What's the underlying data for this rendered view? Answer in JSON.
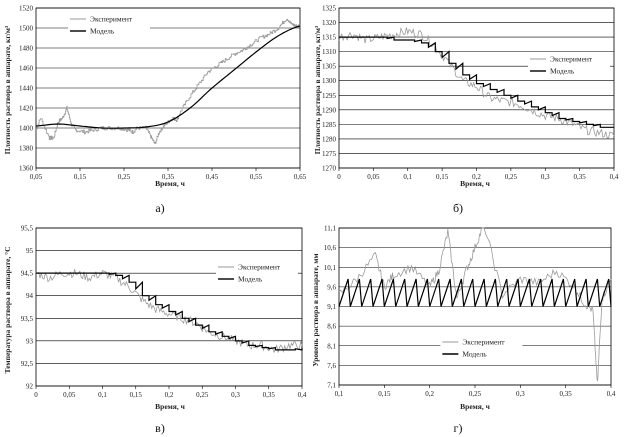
{
  "chart_data": [
    {
      "type": "line",
      "panel": "а)",
      "ylabel": "Плотность раствора в аппарате, кг/м³",
      "xlabel": "Время, ч",
      "xlim": [
        0.05,
        0.65
      ],
      "ylim": [
        1360,
        1520
      ],
      "xticks": [
        "0,05",
        "0,15",
        "0,25",
        "0,35",
        "0,45",
        "0,55",
        "0,65"
      ],
      "xtick_values": [
        0.05,
        0.15,
        0.25,
        0.35,
        0.45,
        0.55,
        0.65
      ],
      "yticks": [
        "1360",
        "1380",
        "1400",
        "1420",
        "1440",
        "1460",
        "1480",
        "1500",
        "1520"
      ],
      "ytick_values": [
        1360,
        1380,
        1400,
        1420,
        1440,
        1460,
        1480,
        1500,
        1520
      ],
      "legend_position": "top-left",
      "series": [
        {
          "name": "Эксперимент",
          "color": "#9a9a9a",
          "style": "step-noisy",
          "x": [
            0.05,
            0.06,
            0.08,
            0.09,
            0.1,
            0.11,
            0.12,
            0.13,
            0.14,
            0.16,
            0.18,
            0.2,
            0.22,
            0.24,
            0.26,
            0.27,
            0.28,
            0.3,
            0.31,
            0.32,
            0.33,
            0.34,
            0.35,
            0.36,
            0.37,
            0.38,
            0.4,
            0.42,
            0.44,
            0.46,
            0.48,
            0.5,
            0.52,
            0.54,
            0.56,
            0.58,
            0.6,
            0.62,
            0.63,
            0.64,
            0.65
          ],
          "y": [
            1398,
            1410,
            1390,
            1390,
            1406,
            1410,
            1420,
            1404,
            1398,
            1396,
            1398,
            1400,
            1400,
            1400,
            1398,
            1396,
            1400,
            1400,
            1392,
            1384,
            1396,
            1402,
            1406,
            1410,
            1408,
            1418,
            1432,
            1444,
            1456,
            1462,
            1468,
            1474,
            1478,
            1484,
            1490,
            1494,
            1500,
            1510,
            1504,
            1502,
            1502
          ]
        },
        {
          "name": "Модель",
          "color": "#000000",
          "style": "smooth",
          "x": [
            0.05,
            0.1,
            0.15,
            0.2,
            0.25,
            0.3,
            0.35,
            0.4,
            0.45,
            0.5,
            0.55,
            0.6,
            0.65
          ],
          "y": [
            1402,
            1404,
            1402,
            1400,
            1400,
            1401,
            1406,
            1420,
            1440,
            1458,
            1476,
            1492,
            1502
          ]
        }
      ]
    },
    {
      "type": "line",
      "panel": "б)",
      "ylabel": "Плотность раствора в аппарате, кг/м³",
      "xlabel": "Время, ч",
      "xlim": [
        0,
        0.4
      ],
      "ylim": [
        1270,
        1325
      ],
      "xticks": [
        "0",
        "0,05",
        "0,1",
        "0,15",
        "0,2",
        "0,25",
        "0,3",
        "0,35",
        "0,4"
      ],
      "xtick_values": [
        0,
        0.05,
        0.1,
        0.15,
        0.2,
        0.25,
        0.3,
        0.35,
        0.4
      ],
      "yticks": [
        "1270",
        "1275",
        "1280",
        "1285",
        "1290",
        "1295",
        "1300",
        "1305",
        "1310",
        "1315",
        "1320",
        "1325"
      ],
      "ytick_values": [
        1270,
        1275,
        1280,
        1285,
        1290,
        1295,
        1300,
        1305,
        1310,
        1315,
        1320,
        1325
      ],
      "legend_position": "right",
      "series": [
        {
          "name": "Эксперимент",
          "color": "#9a9a9a",
          "style": "noisy",
          "x": [
            0,
            0.02,
            0.04,
            0.06,
            0.08,
            0.1,
            0.12,
            0.14,
            0.16,
            0.18,
            0.2,
            0.22,
            0.24,
            0.26,
            0.28,
            0.3,
            0.32,
            0.34,
            0.36,
            0.38,
            0.4
          ],
          "y": [
            1315,
            1316,
            1314,
            1315,
            1316,
            1317,
            1316,
            1312,
            1306,
            1300,
            1298,
            1294,
            1293,
            1292,
            1290,
            1288,
            1287,
            1285,
            1283,
            1282,
            1281
          ]
        },
        {
          "name": "Модель",
          "color": "#000000",
          "style": "step",
          "x": [
            0,
            0.02,
            0.04,
            0.06,
            0.08,
            0.1,
            0.12,
            0.14,
            0.16,
            0.18,
            0.2,
            0.22,
            0.24,
            0.26,
            0.28,
            0.3,
            0.32,
            0.34,
            0.36,
            0.38,
            0.4
          ],
          "y": [
            1315,
            1315,
            1315,
            1315,
            1314,
            1314,
            1313,
            1310,
            1306,
            1302,
            1299,
            1297,
            1295,
            1293,
            1291,
            1289,
            1287,
            1286,
            1285,
            1284,
            1284
          ]
        }
      ]
    },
    {
      "type": "line",
      "panel": "в)",
      "ylabel": "Температура раствора в аппарате, °С",
      "xlabel": "Время, ч",
      "xlim": [
        0,
        0.4
      ],
      "ylim": [
        92,
        95.5
      ],
      "xticks": [
        "0",
        "0,05",
        "0,1",
        "0,15",
        "0,2",
        "0,25",
        "0,3",
        "0,35",
        "0,4"
      ],
      "xtick_values": [
        0,
        0.05,
        0.1,
        0.15,
        0.2,
        0.25,
        0.3,
        0.35,
        0.4
      ],
      "yticks": [
        "92",
        "92,5",
        "93",
        "93,5",
        "94",
        "94,5",
        "95",
        "95,5"
      ],
      "ytick_values": [
        92,
        92.5,
        93,
        93.5,
        94,
        94.5,
        95,
        95.5
      ],
      "legend_position": "right",
      "series": [
        {
          "name": "Эксперимент",
          "color": "#9a9a9a",
          "style": "noisy",
          "x": [
            0,
            0.02,
            0.04,
            0.06,
            0.08,
            0.1,
            0.12,
            0.14,
            0.16,
            0.18,
            0.2,
            0.22,
            0.24,
            0.26,
            0.28,
            0.3,
            0.32,
            0.34,
            0.36,
            0.38,
            0.4
          ],
          "y": [
            94.5,
            94.4,
            94.5,
            94.5,
            94.4,
            94.5,
            94.4,
            94.2,
            93.9,
            93.7,
            93.6,
            93.5,
            93.4,
            93.2,
            93.1,
            93.0,
            92.9,
            92.9,
            92.8,
            92.9,
            92.9
          ]
        },
        {
          "name": "Модель",
          "color": "#000000",
          "style": "step",
          "x": [
            0,
            0.02,
            0.04,
            0.06,
            0.08,
            0.1,
            0.12,
            0.14,
            0.16,
            0.18,
            0.2,
            0.22,
            0.24,
            0.26,
            0.28,
            0.3,
            0.32,
            0.34,
            0.36,
            0.38,
            0.4
          ],
          "y": [
            94.5,
            94.5,
            94.5,
            94.5,
            94.5,
            94.5,
            94.45,
            94.3,
            94.0,
            93.8,
            93.65,
            93.5,
            93.35,
            93.2,
            93.1,
            93.0,
            92.9,
            92.85,
            92.8,
            92.8,
            92.85
          ]
        }
      ]
    },
    {
      "type": "line",
      "panel": "г)",
      "ylabel": "Уровень раствора в аппарате, мм",
      "xlabel": "Время, ч",
      "xlim": [
        0.1,
        0.4
      ],
      "ylim": [
        7.1,
        11.1
      ],
      "xticks": [
        "0,1",
        "0,15",
        "0,2",
        "0,25",
        "0,3",
        "0,35",
        "0,4"
      ],
      "xtick_values": [
        0.1,
        0.15,
        0.2,
        0.25,
        0.3,
        0.35,
        0.4
      ],
      "yticks": [
        "7,1",
        "7,6",
        "8,1",
        "8,6",
        "9,1",
        "9,6",
        "10,1",
        "10,6",
        "11,1"
      ],
      "ytick_values": [
        7.1,
        7.6,
        8.1,
        8.6,
        9.1,
        9.6,
        10.1,
        10.6,
        11.1
      ],
      "legend_position": "bottom-center",
      "series": [
        {
          "name": "Эксперимент",
          "color": "#9a9a9a",
          "style": "noisy",
          "x": [
            0.1,
            0.12,
            0.14,
            0.15,
            0.16,
            0.18,
            0.2,
            0.21,
            0.22,
            0.23,
            0.24,
            0.25,
            0.26,
            0.28,
            0.3,
            0.32,
            0.34,
            0.36,
            0.37,
            0.38,
            0.385,
            0.39,
            0.4
          ],
          "y": [
            9.4,
            9.8,
            10.4,
            9.6,
            9.9,
            10.1,
            9.6,
            10.0,
            11.0,
            9.3,
            10.0,
            10.6,
            11.2,
            9.4,
            9.8,
            9.7,
            10.0,
            9.6,
            9.2,
            9.0,
            7.1,
            9.3,
            9.8
          ]
        },
        {
          "name": "Модель",
          "color": "#000000",
          "style": "sawtooth",
          "x": [
            0.1,
            0.4
          ],
          "y": [
            9.1,
            9.8
          ],
          "period_h": 0.0125
        }
      ]
    }
  ]
}
